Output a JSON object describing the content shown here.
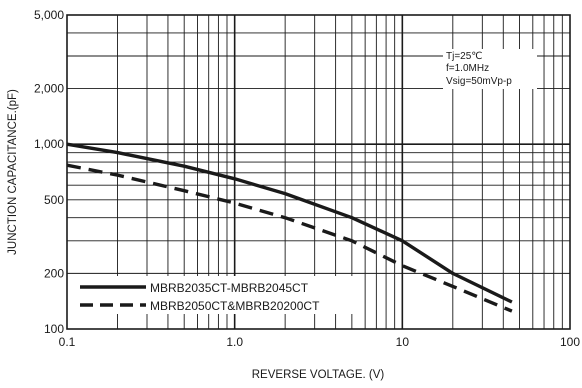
{
  "chart_data": {
    "type": "line",
    "xscale": "log",
    "yscale": "log",
    "xlim": [
      0.1,
      100
    ],
    "ylim": [
      100,
      5000
    ],
    "xlabel": "REVERSE VOLTAGE. (V)",
    "ylabel": "JUNCTION CAPACITANCE.(pF)",
    "grid": true,
    "x_ticks": [
      {
        "value": 0.1,
        "label": "0.1"
      },
      {
        "value": 1,
        "label": "1.0"
      },
      {
        "value": 10,
        "label": "10"
      },
      {
        "value": 100,
        "label": "100"
      }
    ],
    "y_ticks": [
      {
        "value": 100,
        "label": "100"
      },
      {
        "value": 200,
        "label": "200"
      },
      {
        "value": 500,
        "label": "500"
      },
      {
        "value": 1000,
        "label": "1,000"
      },
      {
        "value": 2000,
        "label": "2,000"
      },
      {
        "value": 5000,
        "label": "5,000"
      }
    ],
    "annotation": [
      "Tj=25℃",
      "f=1.0MHz",
      "Vsig=50mVp-p"
    ],
    "legend_position": "bottom-left",
    "series": [
      {
        "name": "MBRB2035CT-MBRB2045CT",
        "style": "solid",
        "color": "#1a1a1a",
        "x": [
          0.1,
          0.2,
          0.5,
          1,
          2,
          5,
          10,
          20,
          45
        ],
        "y": [
          1000,
          900,
          760,
          650,
          540,
          400,
          300,
          200,
          140
        ]
      },
      {
        "name": "MBRB2050CT&MBRB20200CT",
        "style": "dashed",
        "color": "#1a1a1a",
        "x": [
          0.1,
          0.2,
          0.5,
          1,
          2,
          5,
          10,
          20,
          45
        ],
        "y": [
          770,
          680,
          560,
          480,
          400,
          300,
          220,
          170,
          125
        ]
      }
    ]
  }
}
